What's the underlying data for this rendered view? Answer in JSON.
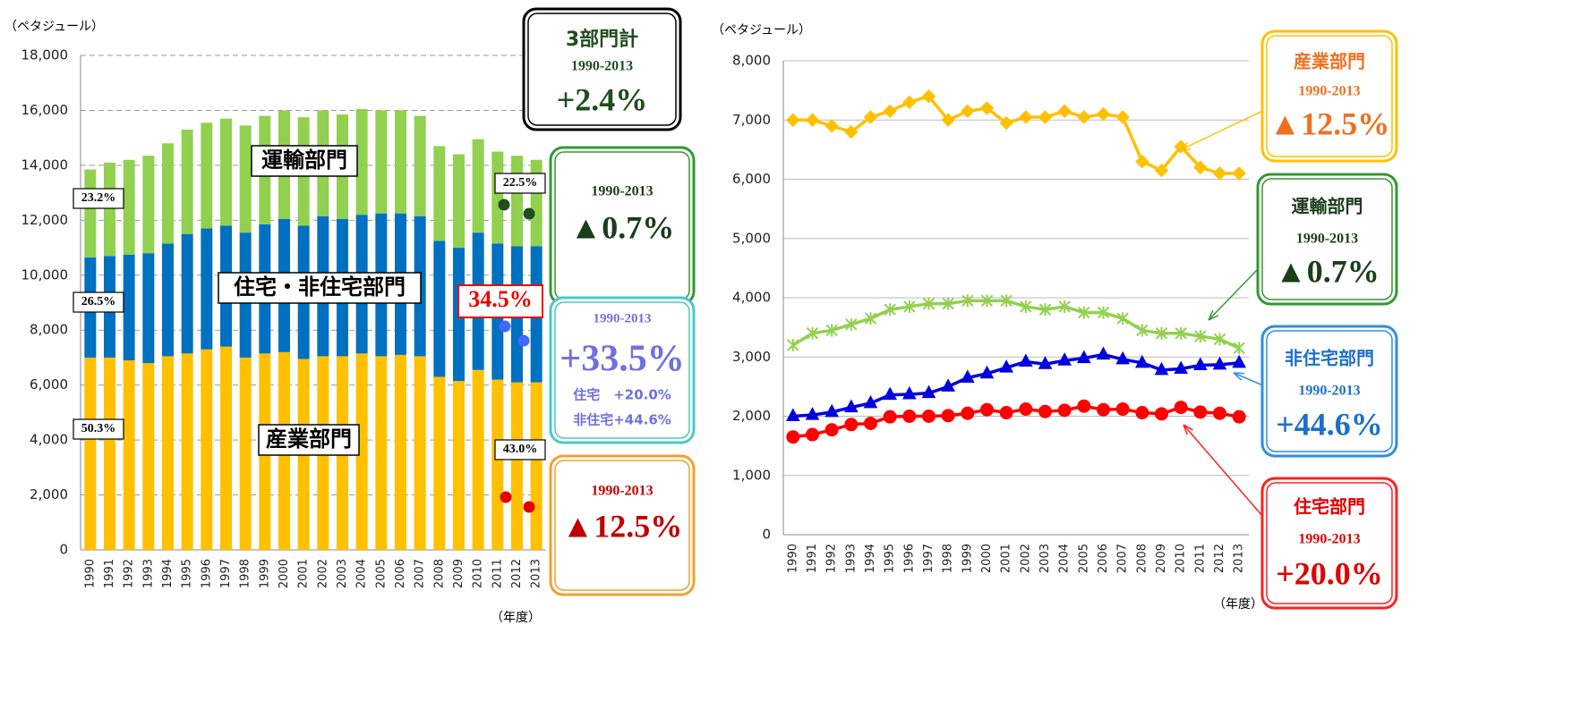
{
  "chart_data": [
    {
      "type": "bar",
      "stacked": true,
      "y_unit_label": "（ペタジュール）",
      "x_unit_label": "（年度）",
      "categories": [
        "1990",
        "1991",
        "1992",
        "1993",
        "1994",
        "1995",
        "1996",
        "1997",
        "1998",
        "1999",
        "2000",
        "2001",
        "2002",
        "2003",
        "2004",
        "2005",
        "2006",
        "2007",
        "2008",
        "2009",
        "2010",
        "2011",
        "2012",
        "2013"
      ],
      "series": [
        {
          "name": "産業部門",
          "color": "#ffc000",
          "values": [
            7000,
            7000,
            6900,
            6800,
            7050,
            7150,
            7300,
            7400,
            7000,
            7150,
            7200,
            6950,
            7050,
            7050,
            7150,
            7050,
            7100,
            7050,
            6300,
            6150,
            6550,
            6200,
            6100,
            6100
          ]
        },
        {
          "name": "住宅・非住宅部門",
          "color": "#0070c0",
          "values": [
            3650,
            3700,
            3850,
            4000,
            4100,
            4350,
            4400,
            4400,
            4550,
            4700,
            4850,
            4850,
            5100,
            5000,
            5050,
            5200,
            5150,
            5100,
            4950,
            4850,
            5000,
            4950,
            4950,
            4950
          ]
        },
        {
          "name": "運輸部門",
          "color": "#92d050",
          "values": [
            3200,
            3400,
            3450,
            3550,
            3650,
            3800,
            3850,
            3900,
            3900,
            3950,
            3950,
            3950,
            3850,
            3800,
            3850,
            3750,
            3750,
            3650,
            3450,
            3400,
            3400,
            3350,
            3300,
            3150
          ]
        }
      ],
      "ylim": [
        0,
        18000
      ],
      "yticks": [
        0,
        {
          "value": 2000,
          "label": "2,000"
        },
        {
          "value": 4000,
          "label": "4,000"
        },
        {
          "value": 6000,
          "label": "6,000"
        },
        {
          "value": 8000,
          "label": "8,000"
        },
        {
          "value": 10000,
          "label": "10,000"
        },
        {
          "value": 12000,
          "label": "12,000"
        },
        {
          "value": 14000,
          "label": "14,000"
        },
        {
          "value": 16000,
          "label": "16,000"
        },
        {
          "value": 18000,
          "label": "18,000"
        }
      ],
      "grid": true,
      "grid_style": "dashed",
      "percent_labels": [
        "23.2%",
        "26.5%",
        "50.3%",
        "22.5%",
        "34.5%",
        "43.0%"
      ],
      "callouts": [
        {
          "lines": [
            "3部門計",
            "1990-2013",
            "+2.4%"
          ],
          "border": "#000000",
          "color": "#1f4e1f"
        },
        {
          "lines": [
            "1990-2013",
            "▲0.7%"
          ],
          "border": "#339933",
          "color": "#1a3d1a"
        },
        {
          "lines": [
            "1990-2013",
            "+33.5%",
            "住宅　+20.0%",
            "非住宅+44.6%"
          ],
          "border": "#4bc8c8",
          "color": "#7070e0"
        },
        {
          "lines": [
            "1990-2013",
            "▲12.5%"
          ],
          "border": "#f0a030",
          "color": "#c00000"
        }
      ]
    },
    {
      "type": "line",
      "y_unit_label": "（ペタジュール）",
      "x_unit_label": "（年度）",
      "categories": [
        "1990",
        "1991",
        "1992",
        "1993",
        "1994",
        "1995",
        "1996",
        "1997",
        "1998",
        "1999",
        "2000",
        "2001",
        "2002",
        "2003",
        "2004",
        "2005",
        "2006",
        "2007",
        "2008",
        "2009",
        "2010",
        "2011",
        "2012",
        "2013"
      ],
      "series": [
        {
          "name": "産業部門",
          "color": "#ffc000",
          "marker": "diamond",
          "label_color": "#f07020",
          "border": "#ffc000",
          "callout": [
            "1990-2013",
            "▲12.5%"
          ],
          "values": [
            7000,
            7000,
            6900,
            6800,
            7050,
            7150,
            7300,
            7400,
            7000,
            7150,
            7200,
            6950,
            7050,
            7050,
            7150,
            7050,
            7100,
            7050,
            6300,
            6150,
            6550,
            6200,
            6100,
            6100
          ]
        },
        {
          "name": "運輸部門",
          "color": "#92d050",
          "marker": "star",
          "label_color": "#1a3d1a",
          "border": "#339933",
          "callout": [
            "1990-2013",
            "▲0.7%"
          ],
          "values": [
            3200,
            3400,
            3450,
            3550,
            3650,
            3800,
            3850,
            3900,
            3900,
            3950,
            3950,
            3950,
            3850,
            3800,
            3850,
            3750,
            3750,
            3650,
            3450,
            3400,
            3400,
            3350,
            3300,
            3150
          ]
        },
        {
          "name": "非住宅部門",
          "color": "#0000e0",
          "marker": "triangle",
          "label_color": "#1e6fc8",
          "border": "#2e8ee0",
          "callout": [
            "1990-2013",
            "+44.6%"
          ],
          "values": [
            2000,
            2020,
            2070,
            2150,
            2220,
            2360,
            2370,
            2390,
            2500,
            2650,
            2720,
            2820,
            2920,
            2880,
            2940,
            2980,
            3040,
            2960,
            2900,
            2780,
            2800,
            2860,
            2870,
            2900
          ]
        },
        {
          "name": "住宅部門",
          "color": "#ff0000",
          "marker": "circle",
          "label_color": "#e00000",
          "border": "#ff2020",
          "callout": [
            "1990-2013",
            "+20.0%"
          ],
          "values": [
            1650,
            1690,
            1770,
            1860,
            1880,
            1990,
            2000,
            2000,
            2010,
            2050,
            2110,
            2060,
            2120,
            2080,
            2100,
            2170,
            2110,
            2120,
            2060,
            2040,
            2150,
            2070,
            2050,
            1990
          ]
        }
      ],
      "ylim": [
        0,
        8000
      ],
      "yticks": [
        0,
        {
          "value": 1000,
          "label": "1,000"
        },
        {
          "value": 2000,
          "label": "2,000"
        },
        {
          "value": 3000,
          "label": "3,000"
        },
        {
          "value": 4000,
          "label": "4,000"
        },
        {
          "value": 5000,
          "label": "5,000"
        },
        {
          "value": 6000,
          "label": "6,000"
        },
        {
          "value": 7000,
          "label": "7,000"
        },
        {
          "value": 8000,
          "label": "8,000"
        }
      ],
      "grid": true,
      "grid_style": "solid"
    }
  ]
}
